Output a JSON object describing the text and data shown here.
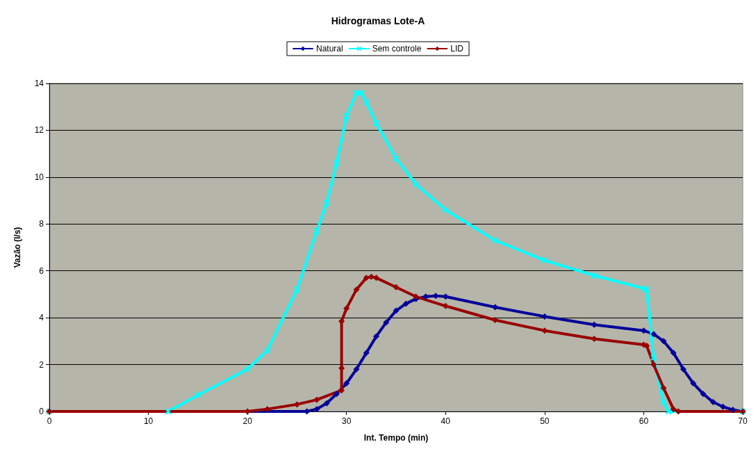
{
  "chart_data": {
    "type": "line",
    "title": "Hidrogramas Lote-A",
    "xlabel": "Int. Tempo (min)",
    "ylabel": "Vazão (l/s)",
    "xlim": [
      0,
      70
    ],
    "xticks": [
      0,
      10,
      20,
      30,
      40,
      50,
      60,
      70
    ],
    "ylim": [
      0,
      14
    ],
    "yticks": [
      0,
      2,
      4,
      6,
      8,
      10,
      12,
      14
    ],
    "grid": "y",
    "legend": "top",
    "series": [
      {
        "name": "Natural",
        "color": "#000099",
        "marker": "diamond",
        "x": [
          0,
          26,
          27,
          28,
          29,
          30,
          31,
          32,
          33,
          34,
          35,
          36,
          37,
          38,
          39,
          40,
          45,
          50,
          55,
          60,
          61,
          62,
          63,
          64,
          65,
          66,
          67,
          68,
          69,
          70
        ],
        "values": [
          0,
          0,
          0.1,
          0.35,
          0.75,
          1.2,
          1.8,
          2.5,
          3.2,
          3.8,
          4.3,
          4.6,
          4.8,
          4.9,
          4.93,
          4.9,
          4.45,
          4.05,
          3.7,
          3.45,
          3.3,
          3.0,
          2.5,
          1.8,
          1.2,
          0.75,
          0.4,
          0.2,
          0.07,
          0
        ]
      },
      {
        "name": "Sem controle",
        "color": "#00ffff",
        "marker": "cross",
        "x": [
          0,
          12,
          15,
          20,
          22,
          25,
          27,
          28,
          29,
          30,
          31,
          31.5,
          32,
          33,
          35,
          37,
          40,
          45,
          50,
          55,
          60,
          60.3,
          61,
          62,
          62.5,
          70
        ],
        "values": [
          0,
          0,
          0.7,
          1.8,
          2.6,
          5.2,
          7.7,
          8.9,
          10.6,
          12.6,
          13.6,
          13.6,
          13.2,
          12.3,
          10.8,
          9.7,
          8.6,
          7.3,
          6.45,
          5.8,
          5.25,
          5.2,
          2.3,
          0.4,
          0,
          0
        ]
      },
      {
        "name": "LID",
        "color": "#990000",
        "marker": "diamond",
        "x": [
          0,
          20,
          22,
          25,
          27,
          29.5,
          29.5,
          29.5,
          30,
          31,
          32,
          32.5,
          33,
          35,
          37,
          40,
          45,
          50,
          55,
          60,
          60.3,
          61,
          62,
          63,
          63.5,
          70
        ],
        "values": [
          0,
          0,
          0.1,
          0.3,
          0.5,
          0.9,
          1.85,
          3.85,
          4.4,
          5.2,
          5.7,
          5.75,
          5.7,
          5.3,
          4.9,
          4.5,
          3.9,
          3.45,
          3.1,
          2.85,
          2.8,
          2.0,
          1.0,
          0.1,
          0,
          0
        ]
      }
    ]
  }
}
